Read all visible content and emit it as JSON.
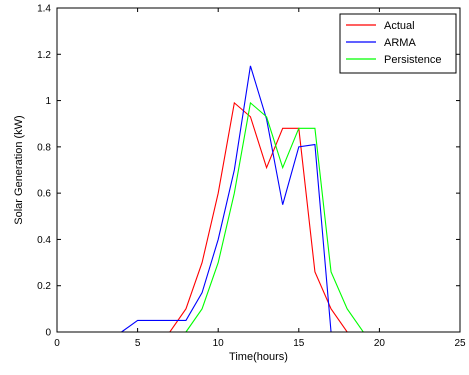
{
  "chart_data": {
    "type": "line",
    "title": "",
    "xlabel": "Time(hours)",
    "ylabel": "Solar Generation (kW)",
    "xlim": [
      0,
      25
    ],
    "ylim": [
      0,
      1.4
    ],
    "xticks": [
      0,
      5,
      10,
      15,
      20,
      25
    ],
    "xtick_labels": [
      "0",
      "5",
      "10",
      "15",
      "20",
      "25"
    ],
    "yticks": [
      0,
      0.2,
      0.4,
      0.6,
      0.8,
      1.0,
      1.2,
      1.4
    ],
    "ytick_labels": [
      "0",
      "0.2",
      "0.4",
      "0.6",
      "0.8",
      "1",
      "1.2",
      "1.4"
    ],
    "grid": false,
    "legend_position": "top-right",
    "series": [
      {
        "name": "Actual",
        "color": "#ff0000",
        "x": [
          1,
          2,
          3,
          4,
          5,
          6,
          7,
          8,
          9,
          10,
          11,
          12,
          13,
          14,
          15,
          16,
          17,
          18,
          19,
          20,
          21,
          22,
          23,
          24
        ],
        "y": [
          0,
          0,
          0,
          0,
          0,
          0,
          0,
          0.1,
          0.3,
          0.6,
          0.99,
          0.93,
          0.71,
          0.88,
          0.88,
          0.26,
          0.1,
          0,
          0,
          0,
          0,
          0,
          0,
          0
        ]
      },
      {
        "name": "ARMA",
        "color": "#0000ff",
        "x": [
          4,
          5,
          6,
          7,
          8,
          9,
          10,
          11,
          12,
          13,
          14,
          15,
          16,
          17,
          17.1,
          18,
          19,
          19.5,
          20.5
        ],
        "y": [
          0,
          0.05,
          0.05,
          0.05,
          0.05,
          0.17,
          0.4,
          0.7,
          1.15,
          0.92,
          0.55,
          0.8,
          0.81,
          0,
          0,
          0,
          0,
          0,
          0
        ]
      },
      {
        "name": "Persistence",
        "color": "#00ff00",
        "x": [
          8,
          9,
          10,
          11,
          12,
          13,
          14,
          15,
          16,
          17,
          18,
          19,
          20,
          21,
          22,
          23,
          24
        ],
        "y": [
          0,
          0.1,
          0.3,
          0.6,
          0.99,
          0.93,
          0.71,
          0.88,
          0.88,
          0.26,
          0.1,
          0,
          0,
          0,
          0,
          0,
          0
        ]
      }
    ]
  }
}
